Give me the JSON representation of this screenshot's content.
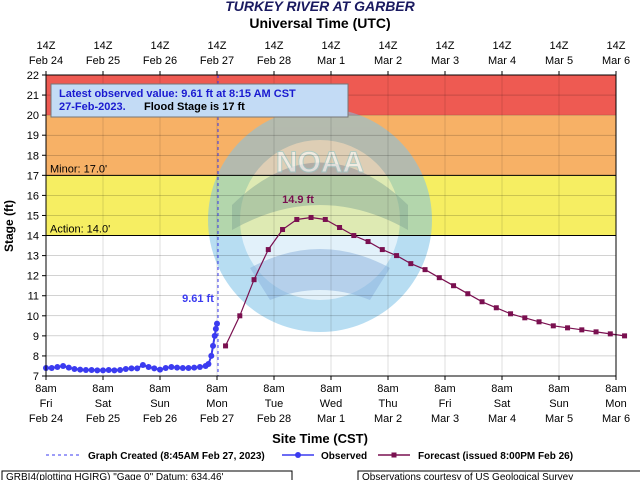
{
  "chart_data": {
    "type": "line",
    "title": "TURKEY RIVER AT GARBER",
    "top_axis_title": "Universal Time (UTC)",
    "xlabel": "Site Time (CST)",
    "ylabel": "Stage (ft)",
    "ylim": [
      7,
      22
    ],
    "y_ticks": [
      "7",
      "8",
      "9",
      "10",
      "11",
      "12",
      "13",
      "14",
      "15",
      "16",
      "17",
      "18",
      "19",
      "20",
      "21",
      "22"
    ],
    "top_ticks": [
      {
        "l1": "14Z",
        "l2": "Feb 24"
      },
      {
        "l1": "14Z",
        "l2": "Feb 25"
      },
      {
        "l1": "14Z",
        "l2": "Feb 26"
      },
      {
        "l1": "14Z",
        "l2": "Feb 27"
      },
      {
        "l1": "14Z",
        "l2": "Feb 28"
      },
      {
        "l1": "14Z",
        "l2": "Mar 1"
      },
      {
        "l1": "14Z",
        "l2": "Mar 2"
      },
      {
        "l1": "14Z",
        "l2": "Mar 3"
      },
      {
        "l1": "14Z",
        "l2": "Mar 4"
      },
      {
        "l1": "14Z",
        "l2": "Mar 5"
      },
      {
        "l1": "14Z",
        "l2": "Mar 6"
      }
    ],
    "bottom_ticks": [
      {
        "l1": "8am",
        "l2": "Fri",
        "l3": "Feb 24"
      },
      {
        "l1": "8am",
        "l2": "Sat",
        "l3": "Feb 25"
      },
      {
        "l1": "8am",
        "l2": "Sun",
        "l3": "Feb 26"
      },
      {
        "l1": "8am",
        "l2": "Mon",
        "l3": "Feb 27"
      },
      {
        "l1": "8am",
        "l2": "Tue",
        "l3": "Feb 28"
      },
      {
        "l1": "8am",
        "l2": "Wed",
        "l3": "Mar 1"
      },
      {
        "l1": "8am",
        "l2": "Thu",
        "l3": "Mar 2"
      },
      {
        "l1": "8am",
        "l2": "Fri",
        "l3": "Mar 3"
      },
      {
        "l1": "8am",
        "l2": "Sat",
        "l3": "Mar 4"
      },
      {
        "l1": "8am",
        "l2": "Sun",
        "l3": "Mar 5"
      },
      {
        "l1": "8am",
        "l2": "Mon",
        "l3": "Mar 6"
      }
    ],
    "bands": [
      {
        "from": 20,
        "to": 22,
        "color": "#ee5a52"
      },
      {
        "from": 17,
        "to": 20,
        "color": "#f7b166"
      },
      {
        "from": 14,
        "to": 17,
        "color": "#f6ee62"
      }
    ],
    "thresholds": [
      {
        "value": 17,
        "label": "Minor: 17.0'"
      },
      {
        "value": 14,
        "label": "Action: 14.0'"
      }
    ],
    "info_box": {
      "line1": "Latest observed value: 9.61 ft at 8:15 AM CST",
      "line2_date": "27-Feb-2023.",
      "line2_flood": "Flood Stage is 17 ft"
    },
    "observed_label": "9.61 ft",
    "forecast_label": "14.9 ft",
    "series": [
      {
        "name": "Observed",
        "color": "#3b3bf0",
        "points": [
          [
            0.0,
            7.4
          ],
          [
            0.1,
            7.4
          ],
          [
            0.2,
            7.45
          ],
          [
            0.3,
            7.5
          ],
          [
            0.4,
            7.42
          ],
          [
            0.5,
            7.35
          ],
          [
            0.6,
            7.32
          ],
          [
            0.7,
            7.3
          ],
          [
            0.8,
            7.3
          ],
          [
            0.9,
            7.28
          ],
          [
            1.0,
            7.28
          ],
          [
            1.1,
            7.3
          ],
          [
            1.2,
            7.28
          ],
          [
            1.3,
            7.3
          ],
          [
            1.4,
            7.35
          ],
          [
            1.5,
            7.38
          ],
          [
            1.6,
            7.38
          ],
          [
            1.7,
            7.55
          ],
          [
            1.8,
            7.45
          ],
          [
            1.9,
            7.38
          ],
          [
            2.0,
            7.32
          ],
          [
            2.1,
            7.4
          ],
          [
            2.2,
            7.45
          ],
          [
            2.3,
            7.42
          ],
          [
            2.4,
            7.4
          ],
          [
            2.5,
            7.4
          ],
          [
            2.6,
            7.42
          ],
          [
            2.7,
            7.45
          ],
          [
            2.8,
            7.5
          ],
          [
            2.85,
            7.6
          ],
          [
            2.9,
            8.0
          ],
          [
            2.93,
            8.5
          ],
          [
            2.96,
            9.0
          ],
          [
            2.98,
            9.35
          ],
          [
            3.0,
            9.61
          ]
        ]
      },
      {
        "name": "Forecast (issued 8:00PM Feb 26)",
        "color": "#7a1050",
        "points": [
          [
            3.15,
            8.5
          ],
          [
            3.4,
            10.0
          ],
          [
            3.65,
            11.8
          ],
          [
            3.9,
            13.3
          ],
          [
            4.15,
            14.3
          ],
          [
            4.4,
            14.8
          ],
          [
            4.65,
            14.9
          ],
          [
            4.9,
            14.8
          ],
          [
            5.15,
            14.4
          ],
          [
            5.4,
            14.0
          ],
          [
            5.65,
            13.7
          ],
          [
            5.9,
            13.3
          ],
          [
            6.15,
            13.0
          ],
          [
            6.4,
            12.6
          ],
          [
            6.65,
            12.3
          ],
          [
            6.9,
            11.9
          ],
          [
            7.15,
            11.5
          ],
          [
            7.4,
            11.1
          ],
          [
            7.65,
            10.7
          ],
          [
            7.9,
            10.4
          ],
          [
            8.15,
            10.1
          ],
          [
            8.4,
            9.9
          ],
          [
            8.65,
            9.7
          ],
          [
            8.9,
            9.5
          ],
          [
            9.15,
            9.4
          ],
          [
            9.4,
            9.3
          ],
          [
            9.65,
            9.2
          ],
          [
            9.9,
            9.1
          ],
          [
            10.15,
            9.0
          ]
        ]
      }
    ],
    "legend": {
      "created": "Graph Created (8:45AM Feb 27, 2023)",
      "observed": "Observed",
      "forecast": "Forecast (issued 8:00PM Feb 26)"
    },
    "footer_left": "GRBI4(plotting HGIRG) \"Gage 0\" Datum: 634.46'",
    "footer_right": "Observations courtesy of US Geological Survey"
  }
}
